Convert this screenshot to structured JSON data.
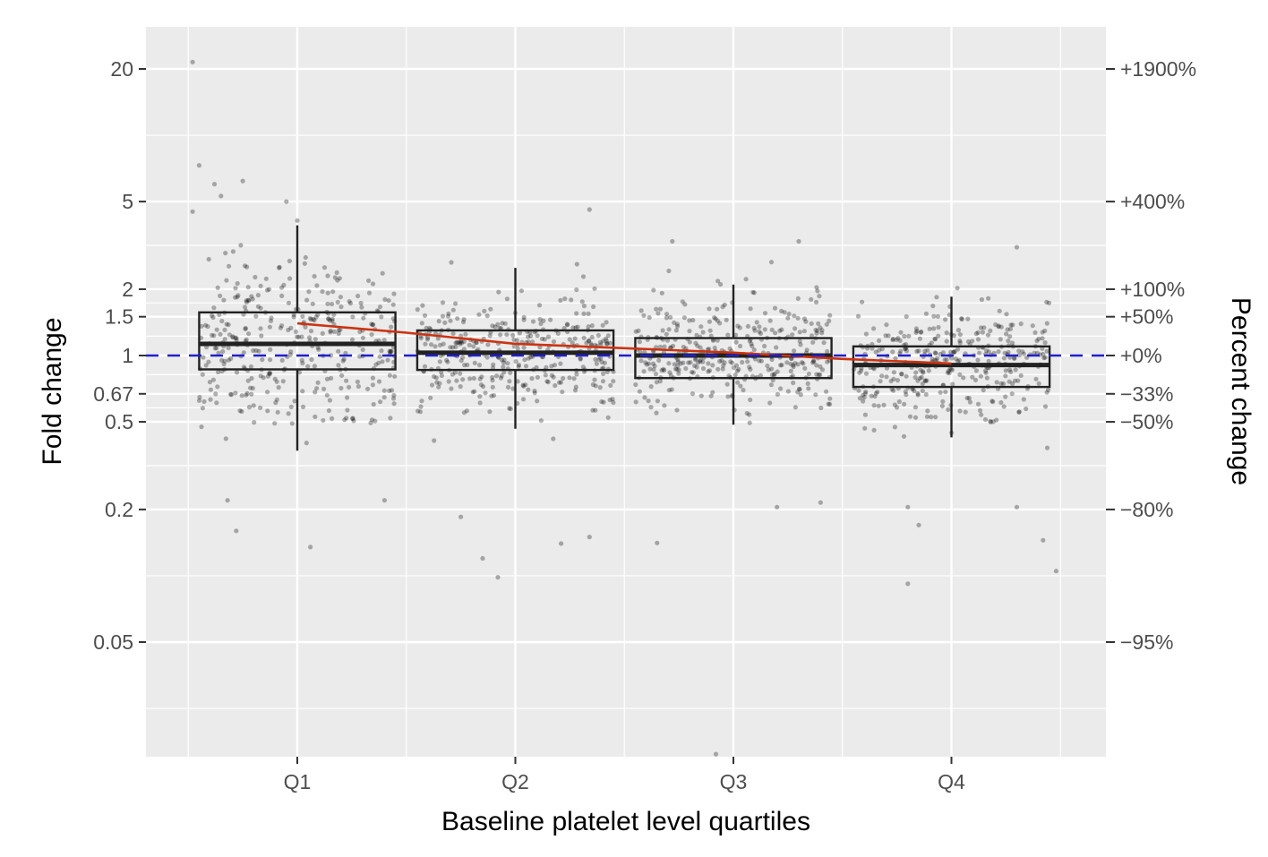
{
  "chart_data": {
    "type": "boxplot",
    "xlabel": "Baseline platelet level quartiles",
    "ylabel": "Fold change",
    "y2label": "Percent change",
    "y_scale": "log",
    "ylim": [
      0.0112,
      32
    ],
    "categories": [
      "Q1",
      "Q2",
      "Q3",
      "Q4"
    ],
    "y_ticks": [
      0.05,
      0.2,
      0.5,
      0.67,
      1,
      1.5,
      2,
      5,
      20
    ],
    "y_tick_labels": [
      "0.05",
      "0.2",
      "0.5",
      "0.67",
      "1",
      "1.5",
      "2",
      "5",
      "20"
    ],
    "y2_ticks": [
      0.05,
      0.2,
      0.5,
      0.67,
      1,
      1.5,
      2,
      5,
      20
    ],
    "y2_tick_labels": [
      "−95%",
      "−80%",
      "−50%",
      "−33%",
      "+0%",
      "+50%",
      "+100%",
      "+400%",
      "+1900%"
    ],
    "boxes": [
      {
        "category": "Q1",
        "whisker_low": 0.37,
        "q1": 0.865,
        "median": 1.13,
        "q3": 1.57,
        "whisker_high": 3.9
      },
      {
        "category": "Q2",
        "whisker_low": 0.465,
        "q1": 0.86,
        "median": 1.03,
        "q3": 1.3,
        "whisker_high": 2.5
      },
      {
        "category": "Q3",
        "whisker_low": 0.485,
        "q1": 0.79,
        "median": 1.0,
        "q3": 1.2,
        "whisker_high": 2.1
      },
      {
        "category": "Q4",
        "whisker_low": 0.425,
        "q1": 0.72,
        "median": 0.905,
        "q3": 1.1,
        "whisker_high": 1.85
      }
    ],
    "trend_line": {
      "color": "#cc3311",
      "points": [
        [
          1,
          1.4
        ],
        [
          1.5,
          1.27
        ],
        [
          2,
          1.13
        ],
        [
          2.5,
          1.08
        ],
        [
          3,
          1.03
        ],
        [
          3.5,
          0.965
        ],
        [
          4,
          0.92
        ]
      ]
    },
    "reference_line": {
      "y": 1,
      "color": "#1f1fcc",
      "style": "dashed"
    },
    "outlier_points": [
      [
        0.52,
        21.5
      ],
      [
        0.55,
        7.3
      ],
      [
        0.62,
        6.0
      ],
      [
        0.75,
        6.2
      ],
      [
        0.65,
        5.3
      ],
      [
        0.52,
        4.5
      ],
      [
        0.95,
        5.0
      ],
      [
        1.0,
        4.1
      ],
      [
        0.72,
        0.16
      ],
      [
        0.68,
        0.22
      ],
      [
        1.06,
        0.135
      ],
      [
        1.4,
        0.22
      ],
      [
        1.75,
        0.185
      ],
      [
        1.85,
        0.12
      ],
      [
        1.92,
        0.0985
      ],
      [
        2.21,
        0.14
      ],
      [
        2.34,
        0.15
      ],
      [
        2.65,
        0.141
      ],
      [
        3.2,
        0.205
      ],
      [
        3.4,
        0.215
      ],
      [
        2.92,
        0.0155
      ],
      [
        3.8,
        0.205
      ],
      [
        4.3,
        0.205
      ],
      [
        4.42,
        0.145
      ],
      [
        4.48,
        0.105
      ],
      [
        3.8,
        0.092
      ],
      [
        3.85,
        0.17
      ],
      [
        4.3,
        3.1
      ],
      [
        2.34,
        4.6
      ],
      [
        2.72,
        3.3
      ],
      [
        3.3,
        3.3
      ]
    ],
    "jitter_points_per_group": 360,
    "point_color": "#000000",
    "point_opacity": 0.3,
    "background": "#ebebeb",
    "grid": true
  }
}
